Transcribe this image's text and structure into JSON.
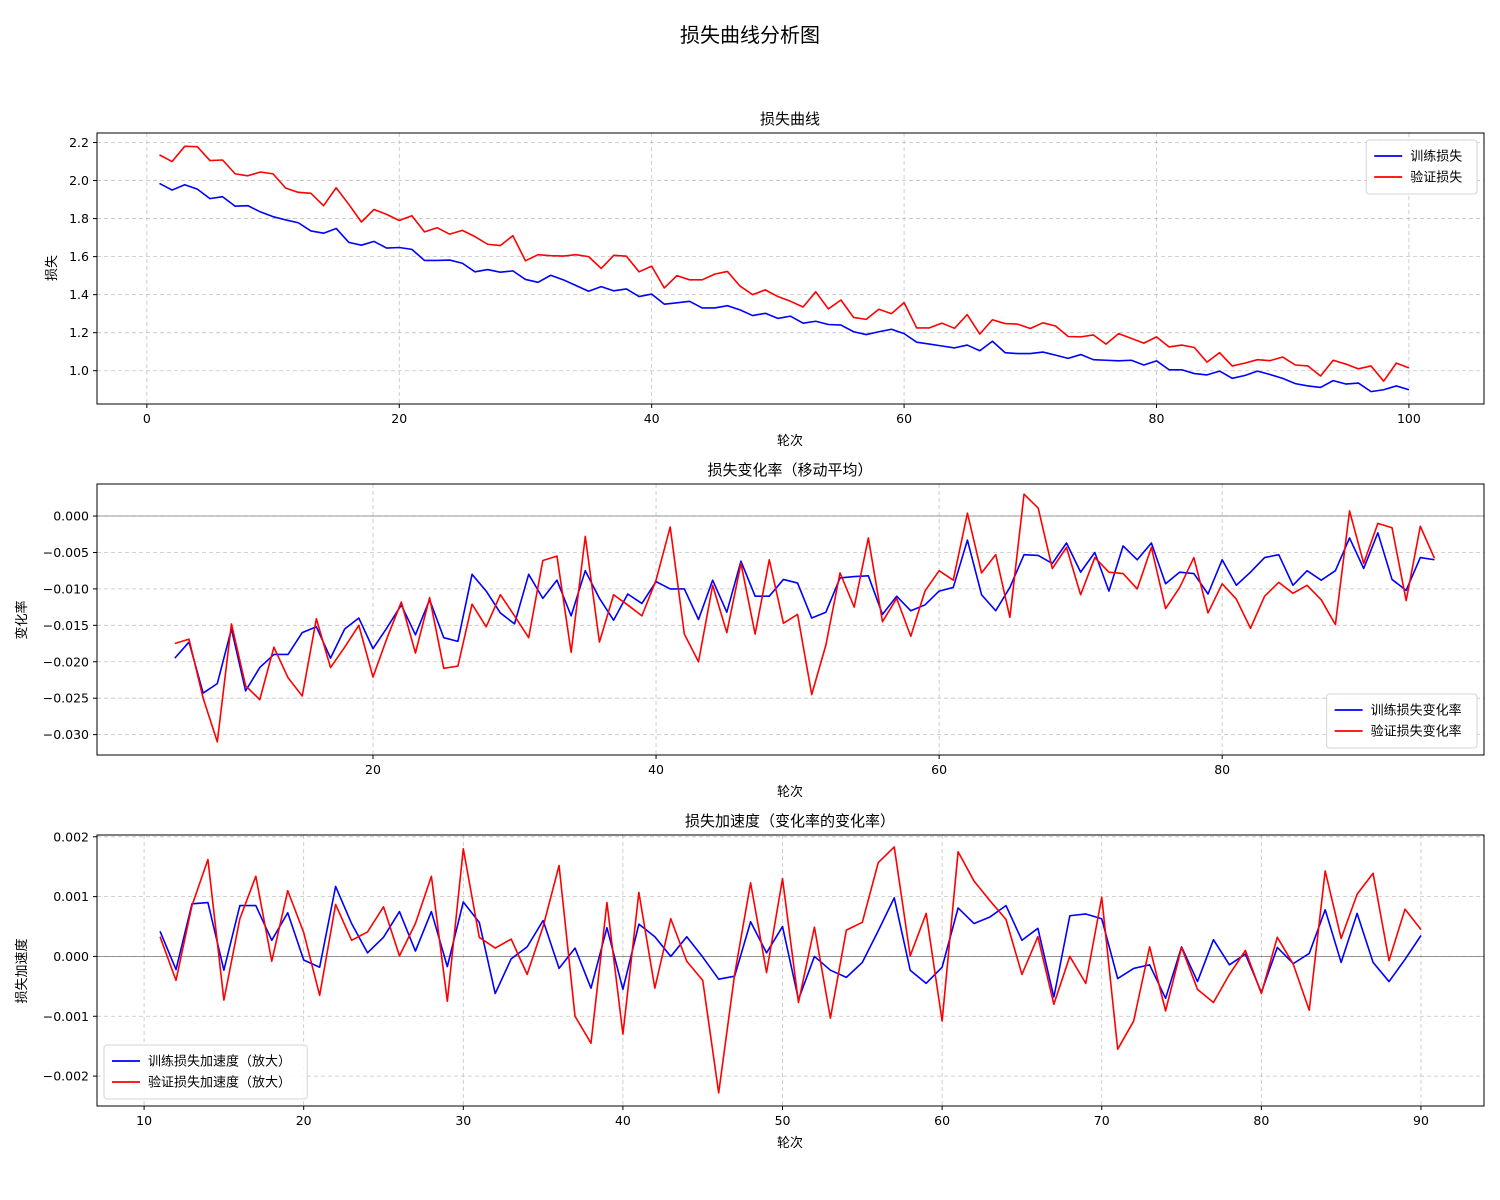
{
  "figure": {
    "suptitle": "损失曲线分析图"
  },
  "chart_data": [
    {
      "type": "line",
      "title": "损失曲线",
      "xlabel": "轮次",
      "ylabel": "损失",
      "xlim": [
        -3.95,
        105.95
      ],
      "ylim": [
        0.825,
        2.25
      ],
      "xticks": [
        0,
        20,
        40,
        60,
        80,
        100
      ],
      "yticks": [
        1.0,
        1.2,
        1.4,
        1.6,
        1.8,
        2.0,
        2.2
      ],
      "tick_decimals": 1,
      "grid": true,
      "legend": "upper-right",
      "zero_line": false,
      "x": [
        1,
        2,
        3,
        4,
        5,
        6,
        7,
        8,
        9,
        10,
        11,
        12,
        13,
        14,
        15,
        16,
        17,
        18,
        19,
        20,
        21,
        22,
        23,
        24,
        25,
        26,
        27,
        28,
        29,
        30,
        31,
        32,
        33,
        34,
        35,
        36,
        37,
        38,
        39,
        40,
        41,
        42,
        43,
        44,
        45,
        46,
        47,
        48,
        49,
        50,
        51,
        52,
        53,
        54,
        55,
        56,
        57,
        58,
        59,
        60,
        61,
        62,
        63,
        64,
        65,
        66,
        67,
        68,
        69,
        70,
        71,
        72,
        73,
        74,
        75,
        76,
        77,
        78,
        79,
        80,
        81,
        82,
        83,
        84,
        85,
        86,
        87,
        88,
        89,
        90,
        91,
        92,
        93,
        94,
        95,
        96,
        97,
        98,
        99,
        100
      ],
      "series": [
        {
          "name": "训练损失",
          "color": "#0000ff",
          "values": [
            1.985,
            1.95,
            1.978,
            1.955,
            1.905,
            1.915,
            1.865,
            1.868,
            1.835,
            1.81,
            1.793,
            1.778,
            1.735,
            1.723,
            1.748,
            1.675,
            1.66,
            1.68,
            1.645,
            1.648,
            1.638,
            1.58,
            1.58,
            1.582,
            1.565,
            1.52,
            1.532,
            1.518,
            1.525,
            1.48,
            1.465,
            1.502,
            1.478,
            1.448,
            1.418,
            1.442,
            1.42,
            1.43,
            1.39,
            1.403,
            1.35,
            1.357,
            1.365,
            1.33,
            1.33,
            1.342,
            1.32,
            1.29,
            1.302,
            1.275,
            1.287,
            1.25,
            1.26,
            1.243,
            1.24,
            1.205,
            1.19,
            1.205,
            1.218,
            1.195,
            1.15,
            1.14,
            1.13,
            1.12,
            1.135,
            1.105,
            1.155,
            1.095,
            1.09,
            1.09,
            1.098,
            1.082,
            1.065,
            1.085,
            1.058,
            1.055,
            1.052,
            1.055,
            1.03,
            1.052,
            1.005,
            1.005,
            0.985,
            0.978,
            0.998,
            0.96,
            0.975,
            0.998,
            0.98,
            0.96,
            0.932,
            0.92,
            0.912,
            0.948,
            0.93,
            0.935,
            0.89,
            0.9,
            0.92,
            0.9
          ]
        },
        {
          "name": "验证损失",
          "color": "#ff0000",
          "values": [
            2.135,
            2.1,
            2.18,
            2.178,
            2.105,
            2.108,
            2.035,
            2.025,
            2.045,
            2.035,
            1.96,
            1.938,
            1.933,
            1.868,
            1.962,
            1.875,
            1.782,
            1.848,
            1.822,
            1.79,
            1.815,
            1.73,
            1.752,
            1.718,
            1.738,
            1.705,
            1.665,
            1.658,
            1.71,
            1.578,
            1.61,
            1.605,
            1.603,
            1.61,
            1.6,
            1.538,
            1.607,
            1.602,
            1.52,
            1.55,
            1.435,
            1.5,
            1.478,
            1.478,
            1.508,
            1.522,
            1.445,
            1.4,
            1.425,
            1.39,
            1.365,
            1.335,
            1.415,
            1.325,
            1.372,
            1.28,
            1.27,
            1.323,
            1.3,
            1.358,
            1.225,
            1.225,
            1.25,
            1.223,
            1.295,
            1.193,
            1.268,
            1.248,
            1.245,
            1.222,
            1.252,
            1.235,
            1.18,
            1.178,
            1.188,
            1.14,
            1.195,
            1.17,
            1.145,
            1.178,
            1.125,
            1.135,
            1.122,
            1.045,
            1.095,
            1.025,
            1.04,
            1.058,
            1.053,
            1.072,
            1.03,
            1.025,
            0.972,
            1.055,
            1.035,
            1.01,
            1.025,
            0.945,
            1.04,
            1.015
          ]
        }
      ]
    },
    {
      "type": "line",
      "title": "损失变化率（移动平均）",
      "xlabel": "轮次",
      "ylabel": "变化率",
      "xlim": [
        0.5,
        98.5
      ],
      "ylim": [
        -0.0328,
        0.0044
      ],
      "xticks": [
        20,
        40,
        60,
        80
      ],
      "yticks": [
        -0.03,
        -0.025,
        -0.02,
        -0.015,
        -0.01,
        -0.005,
        0.0
      ],
      "tick_decimals": 3,
      "grid": true,
      "legend": "lower-right",
      "zero_line": true,
      "x": [
        6,
        7,
        8,
        9,
        10,
        11,
        12,
        13,
        14,
        15,
        16,
        17,
        18,
        19,
        20,
        21,
        22,
        23,
        24,
        25,
        26,
        27,
        28,
        29,
        30,
        31,
        32,
        33,
        34,
        35,
        36,
        37,
        38,
        39,
        40,
        41,
        42,
        43,
        44,
        45,
        46,
        47,
        48,
        49,
        50,
        51,
        52,
        53,
        54,
        55,
        56,
        57,
        58,
        59,
        60,
        61,
        62,
        63,
        64,
        65,
        66,
        67,
        68,
        69,
        70,
        71,
        72,
        73,
        74,
        75,
        76,
        77,
        78,
        79,
        80,
        81,
        82,
        83,
        84,
        85,
        86,
        87,
        88,
        89,
        90,
        91,
        92,
        93,
        94,
        95
      ],
      "series": [
        {
          "name": "训练损失变化率",
          "color": "#0000ff",
          "values": [
            -0.0195,
            -0.0173,
            -0.0243,
            -0.023,
            -0.0155,
            -0.024,
            -0.0208,
            -0.019,
            -0.019,
            -0.016,
            -0.0152,
            -0.0195,
            -0.0155,
            -0.014,
            -0.0182,
            -0.0153,
            -0.0122,
            -0.0163,
            -0.0115,
            -0.0167,
            -0.0172,
            -0.008,
            -0.0103,
            -0.0133,
            -0.0148,
            -0.008,
            -0.0113,
            -0.0088,
            -0.0137,
            -0.0075,
            -0.0113,
            -0.0143,
            -0.0107,
            -0.012,
            -0.009,
            -0.01,
            -0.01,
            -0.0142,
            -0.0088,
            -0.0132,
            -0.0062,
            -0.011,
            -0.011,
            -0.0087,
            -0.0092,
            -0.014,
            -0.0132,
            -0.0085,
            -0.0083,
            -0.0082,
            -0.0135,
            -0.011,
            -0.013,
            -0.0122,
            -0.0103,
            -0.0098,
            -0.0033,
            -0.0108,
            -0.013,
            -0.0098,
            -0.0053,
            -0.0054,
            -0.0065,
            -0.0037,
            -0.0077,
            -0.005,
            -0.0103,
            -0.0041,
            -0.006,
            -0.0037,
            -0.0093,
            -0.0077,
            -0.0079,
            -0.0107,
            -0.006,
            -0.0095,
            -0.0077,
            -0.0057,
            -0.0053,
            -0.0095,
            -0.0075,
            -0.0088,
            -0.0075,
            -0.003,
            -0.0072,
            -0.0023,
            -0.0087,
            -0.0102,
            -0.0057,
            -0.006
          ]
        },
        {
          "name": "验证损失变化率",
          "color": "#ff0000",
          "values": [
            -0.0175,
            -0.0169,
            -0.025,
            -0.031,
            -0.0148,
            -0.0233,
            -0.0252,
            -0.018,
            -0.0222,
            -0.0247,
            -0.0141,
            -0.0208,
            -0.018,
            -0.015,
            -0.0221,
            -0.0167,
            -0.0118,
            -0.0188,
            -0.0112,
            -0.0209,
            -0.0206,
            -0.0121,
            -0.0152,
            -0.0108,
            -0.0137,
            -0.0167,
            -0.0061,
            -0.0055,
            -0.0187,
            -0.0028,
            -0.0173,
            -0.0108,
            -0.0122,
            -0.0137,
            -0.0088,
            -0.0015,
            -0.0162,
            -0.02,
            -0.0095,
            -0.016,
            -0.0065,
            -0.0162,
            -0.006,
            -0.0147,
            -0.0135,
            -0.0245,
            -0.0177,
            -0.0078,
            -0.0125,
            -0.003,
            -0.0145,
            -0.0113,
            -0.0165,
            -0.0103,
            -0.0075,
            -0.0088,
            0.0004,
            -0.0078,
            -0.0053,
            -0.0139,
            0.003,
            0.0011,
            -0.0072,
            -0.0043,
            -0.0108,
            -0.0057,
            -0.0077,
            -0.0079,
            -0.01,
            -0.0043,
            -0.0127,
            -0.0098,
            -0.0057,
            -0.0133,
            -0.0093,
            -0.0114,
            -0.0154,
            -0.011,
            -0.0091,
            -0.0106,
            -0.0095,
            -0.0115,
            -0.0149,
            0.0007,
            -0.0065,
            -0.001,
            -0.0016,
            -0.0116,
            -0.0014,
            -0.0058
          ]
        }
      ]
    },
    {
      "type": "line",
      "title": "损失加速度（变化率的变化率）",
      "xlabel": "轮次",
      "ylabel": "损失加速度",
      "xlim": [
        7.05,
        93.95
      ],
      "ylim": [
        -0.0025,
        0.00203
      ],
      "xticks": [
        10,
        20,
        30,
        40,
        50,
        60,
        70,
        80,
        90
      ],
      "yticks": [
        -0.002,
        -0.001,
        0.0,
        0.001,
        0.002
      ],
      "tick_decimals": 3,
      "grid": true,
      "legend": "lower-left",
      "zero_line": true,
      "x": [
        11,
        12,
        13,
        14,
        15,
        16,
        17,
        18,
        19,
        20,
        21,
        22,
        23,
        24,
        25,
        26,
        27,
        28,
        29,
        30,
        31,
        32,
        33,
        34,
        35,
        36,
        37,
        38,
        39,
        40,
        41,
        42,
        43,
        44,
        45,
        46,
        47,
        48,
        49,
        50,
        51,
        52,
        53,
        54,
        55,
        56,
        57,
        58,
        59,
        60,
        61,
        62,
        63,
        64,
        65,
        66,
        67,
        68,
        69,
        70,
        71,
        72,
        73,
        74,
        75,
        76,
        77,
        78,
        79,
        80,
        81,
        82,
        83,
        84,
        85,
        86,
        87,
        88,
        89,
        90
      ],
      "series": [
        {
          "name": "训练损失加速度（放大）",
          "color": "#0000ff",
          "values": [
            0.00042,
            -0.00022,
            0.00088,
            0.0009,
            -0.00023,
            0.00085,
            0.00085,
            0.00027,
            0.00073,
            -6e-05,
            -0.00018,
            0.00117,
            0.00055,
            6e-05,
            0.00032,
            0.00075,
            9e-05,
            0.00075,
            -0.00017,
            0.00091,
            0.00057,
            -0.00062,
            -4e-05,
            0.00016,
            0.0006,
            -0.0002,
            0.00014,
            -0.00053,
            0.00048,
            -0.00055,
            0.00054,
            0.00033,
            0.0,
            0.00033,
            -1e-05,
            -0.00038,
            -0.00033,
            0.00058,
            6e-05,
            0.0005,
            -0.00072,
            0.0,
            -0.00023,
            -0.00035,
            -0.0001,
            0.00043,
            0.00098,
            -0.00023,
            -0.00045,
            -0.00018,
            0.00081,
            0.00055,
            0.00066,
            0.00085,
            0.00027,
            0.00047,
            -0.00068,
            0.00068,
            0.00071,
            0.00063,
            -0.00037,
            -0.0002,
            -0.00014,
            -0.0007,
            0.00016,
            -0.00042,
            0.00028,
            -0.00014,
            4e-05,
            -0.0006,
            0.00015,
            -0.00012,
            5e-05,
            0.00078,
            -0.0001,
            0.00072,
            -0.0001,
            -0.00042,
            -5e-05,
            0.00035
          ]
        },
        {
          "name": "验证损失加速度（放大）",
          "color": "#ff0000",
          "values": [
            0.00033,
            -0.0004,
            0.00085,
            0.00162,
            -0.00073,
            0.00063,
            0.00134,
            -8e-05,
            0.0011,
            0.0004,
            -0.00065,
            0.00087,
            0.00027,
            0.00041,
            0.00083,
            1e-05,
            0.00055,
            0.00134,
            -0.00075,
            0.0018,
            0.00032,
            0.00014,
            0.00029,
            -0.0003,
            0.0005,
            0.00152,
            -0.001,
            -0.00145,
            0.0009,
            -0.0013,
            0.00107,
            -0.00053,
            0.00063,
            -8e-05,
            -0.0004,
            -0.00228,
            -0.0003,
            0.00123,
            -0.00027,
            0.0013,
            -0.00077,
            0.00049,
            -0.00103,
            0.00044,
            0.00057,
            0.00157,
            0.00183,
            1e-05,
            0.00072,
            -0.00108,
            0.00175,
            0.00126,
            0.00093,
            0.00062,
            -0.0003,
            0.00033,
            -0.0008,
            0.0,
            -0.00045,
            0.00099,
            -0.00155,
            -0.00108,
            0.00016,
            -0.00091,
            0.00015,
            -0.00055,
            -0.00077,
            -0.0003,
            0.0001,
            -0.00062,
            0.00032,
            -0.00013,
            -0.0009,
            0.00143,
            0.0003,
            0.00104,
            0.00139,
            -7e-05,
            0.00079,
            0.00045
          ]
        }
      ]
    }
  ]
}
